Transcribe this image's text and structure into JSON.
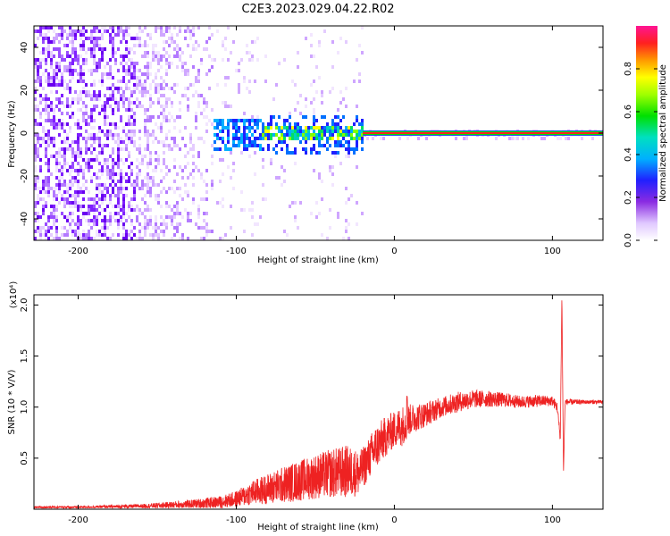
{
  "title": "C2E3.2023.029.04.22.R02",
  "chart_data": [
    {
      "type": "heatmap",
      "xlabel": "Height of straight line (km)",
      "ylabel": "Frequency (Hz)",
      "xlim": [
        -228,
        132
      ],
      "ylim": [
        -50,
        50
      ],
      "xticks": [
        -200,
        -100,
        0,
        100
      ],
      "xtick_labels": [
        "-200",
        "-100",
        "0",
        "100"
      ],
      "yticks": [
        -40,
        -20,
        0,
        20,
        40
      ],
      "ytick_labels": [
        "-40",
        "-20",
        "0",
        "20",
        "40"
      ],
      "colorbar": {
        "label": "Normalized spectral amplitude",
        "range": [
          0,
          1
        ],
        "ticks": [
          0.0,
          0.2,
          0.4,
          0.6,
          0.8
        ],
        "tick_labels": [
          "0.0",
          "0.2",
          "0.4",
          "0.6",
          "0.8"
        ]
      },
      "regions": [
        {
          "x": [
            -228,
            -115
          ],
          "description_level": 0.15
        },
        {
          "x": [
            -140,
            -20
          ],
          "description_level": 0.45
        },
        {
          "x": [
            -20,
            132
          ],
          "description_level": 1.0
        }
      ],
      "grid": false
    },
    {
      "type": "line",
      "xlabel": "Height of straight line (km)",
      "ylabel": "SNR (10 * V/V)",
      "y_multiplier_label": "(x10⁴)",
      "xlim": [
        -228,
        132
      ],
      "ylim": [
        0,
        2.1
      ],
      "xticks": [
        -200,
        -100,
        0,
        100
      ],
      "xtick_labels": [
        "-200",
        "-100",
        "0",
        "100"
      ],
      "yticks": [
        0.5,
        1.0,
        1.5,
        2.0
      ],
      "ytick_labels": [
        "0.5",
        "1.0",
        "1.5",
        "2.0"
      ],
      "color": "#ee2222",
      "series": [
        {
          "envelope_x": [
            -228,
            -200,
            -160,
            -130,
            -110,
            -100,
            -90,
            -80,
            -70,
            -60,
            -50,
            -40,
            -30,
            -22,
            -18,
            -12,
            -5,
            0,
            5,
            10,
            20,
            30,
            40,
            50,
            60,
            70,
            80,
            90,
            100,
            103,
            105,
            106,
            107,
            108,
            110,
            120,
            132
          ],
          "envelope_y": [
            0.02,
            0.02,
            0.03,
            0.05,
            0.07,
            0.1,
            0.16,
            0.2,
            0.24,
            0.28,
            0.32,
            0.35,
            0.37,
            0.35,
            0.45,
            0.6,
            0.72,
            0.78,
            0.82,
            0.88,
            0.93,
            1.0,
            1.05,
            1.08,
            1.08,
            1.07,
            1.05,
            1.06,
            1.06,
            1.0,
            0.7,
            2.1,
            0.35,
            1.05,
            1.05,
            1.05,
            1.05
          ],
          "noise_amplitude": [
            0.01,
            0.01,
            0.02,
            0.04,
            0.06,
            0.08,
            0.12,
            0.15,
            0.18,
            0.2,
            0.22,
            0.24,
            0.26,
            0.22,
            0.2,
            0.22,
            0.2,
            0.18,
            0.2,
            0.15,
            0.12,
            0.1,
            0.1,
            0.09,
            0.08,
            0.07,
            0.06,
            0.06,
            0.05,
            0.05,
            0.05,
            0.0,
            0.0,
            0.03,
            0.03,
            0.02,
            0.02
          ]
        }
      ],
      "annotations": [
        {
          "x": 8,
          "y": 1.18,
          "type": "spike"
        },
        {
          "x": 106,
          "y": 2.1,
          "type": "spike"
        },
        {
          "x": 106.5,
          "y": 0.35,
          "type": "dip"
        }
      ],
      "grid": false
    }
  ]
}
